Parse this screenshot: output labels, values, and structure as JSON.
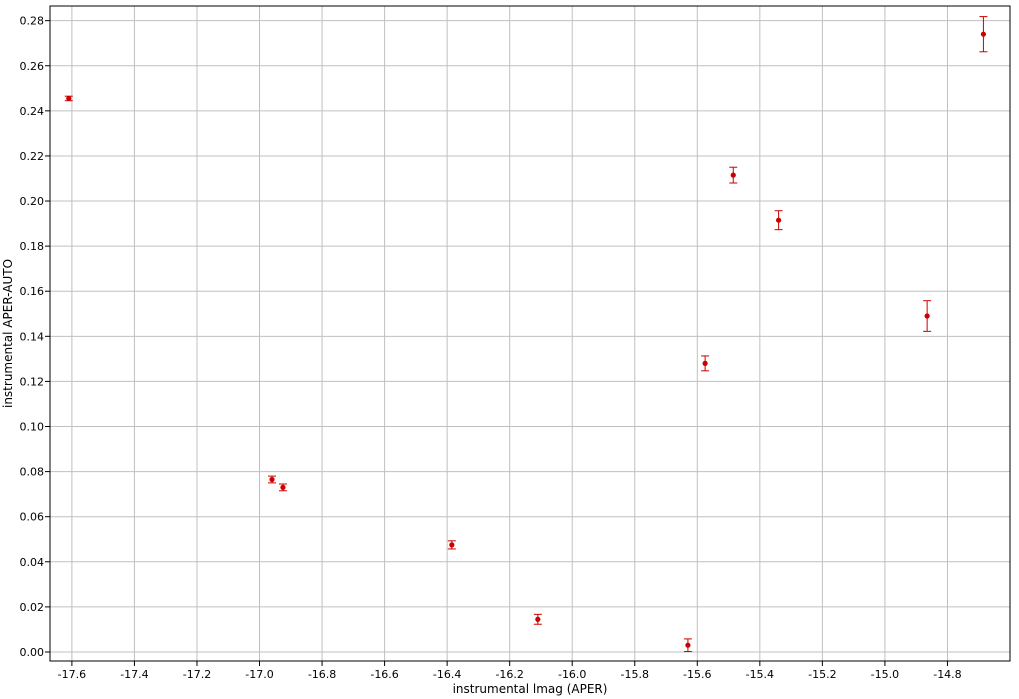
{
  "chart_data": {
    "type": "scatter",
    "title": "",
    "xlabel": "instrumental lmag (APER)",
    "ylabel": "instrumental APER-AUTO",
    "xlim": [
      -17.67,
      -14.6
    ],
    "ylim": [
      -0.004,
      0.2865
    ],
    "x_ticks": [
      -17.6,
      -17.4,
      -17.2,
      -17.0,
      -16.8,
      -16.6,
      -16.4,
      -16.2,
      -16.0,
      -15.8,
      -15.6,
      -15.4,
      -15.2,
      -15.0,
      -14.8
    ],
    "x_tick_labels": [
      "-17.6",
      "-17.4",
      "-17.2",
      "-17.0",
      "-16.8",
      "-16.6",
      "-16.4",
      "-16.2",
      "-16.0",
      "-15.8",
      "-15.6",
      "-15.4",
      "-15.2",
      "-15.0",
      "-14.8"
    ],
    "y_ticks": [
      0.0,
      0.02,
      0.04,
      0.06,
      0.08,
      0.1,
      0.12,
      0.14,
      0.16,
      0.18,
      0.2,
      0.22,
      0.24,
      0.26,
      0.28
    ],
    "y_tick_labels": [
      "0.00",
      "0.02",
      "0.04",
      "0.06",
      "0.08",
      "0.10",
      "0.12",
      "0.14",
      "0.16",
      "0.18",
      "0.20",
      "0.22",
      "0.24",
      "0.26",
      "0.28"
    ],
    "grid": true,
    "marker_color": "#cc0000",
    "points": [
      {
        "x": -17.61,
        "y": 0.2455,
        "err": 0.001
      },
      {
        "x": -16.96,
        "y": 0.0765,
        "err": 0.0015
      },
      {
        "x": -16.925,
        "y": 0.073,
        "err": 0.0015
      },
      {
        "x": -16.385,
        "y": 0.0475,
        "err": 0.0018
      },
      {
        "x": -16.11,
        "y": 0.0145,
        "err": 0.0022
      },
      {
        "x": -15.63,
        "y": 0.003,
        "err": 0.0028
      },
      {
        "x": -15.575,
        "y": 0.128,
        "err": 0.0033
      },
      {
        "x": -15.485,
        "y": 0.2115,
        "err": 0.0035
      },
      {
        "x": -15.34,
        "y": 0.1915,
        "err": 0.0042
      },
      {
        "x": -14.865,
        "y": 0.149,
        "err": 0.0068
      },
      {
        "x": -14.685,
        "y": 0.274,
        "err": 0.0078
      }
    ]
  }
}
